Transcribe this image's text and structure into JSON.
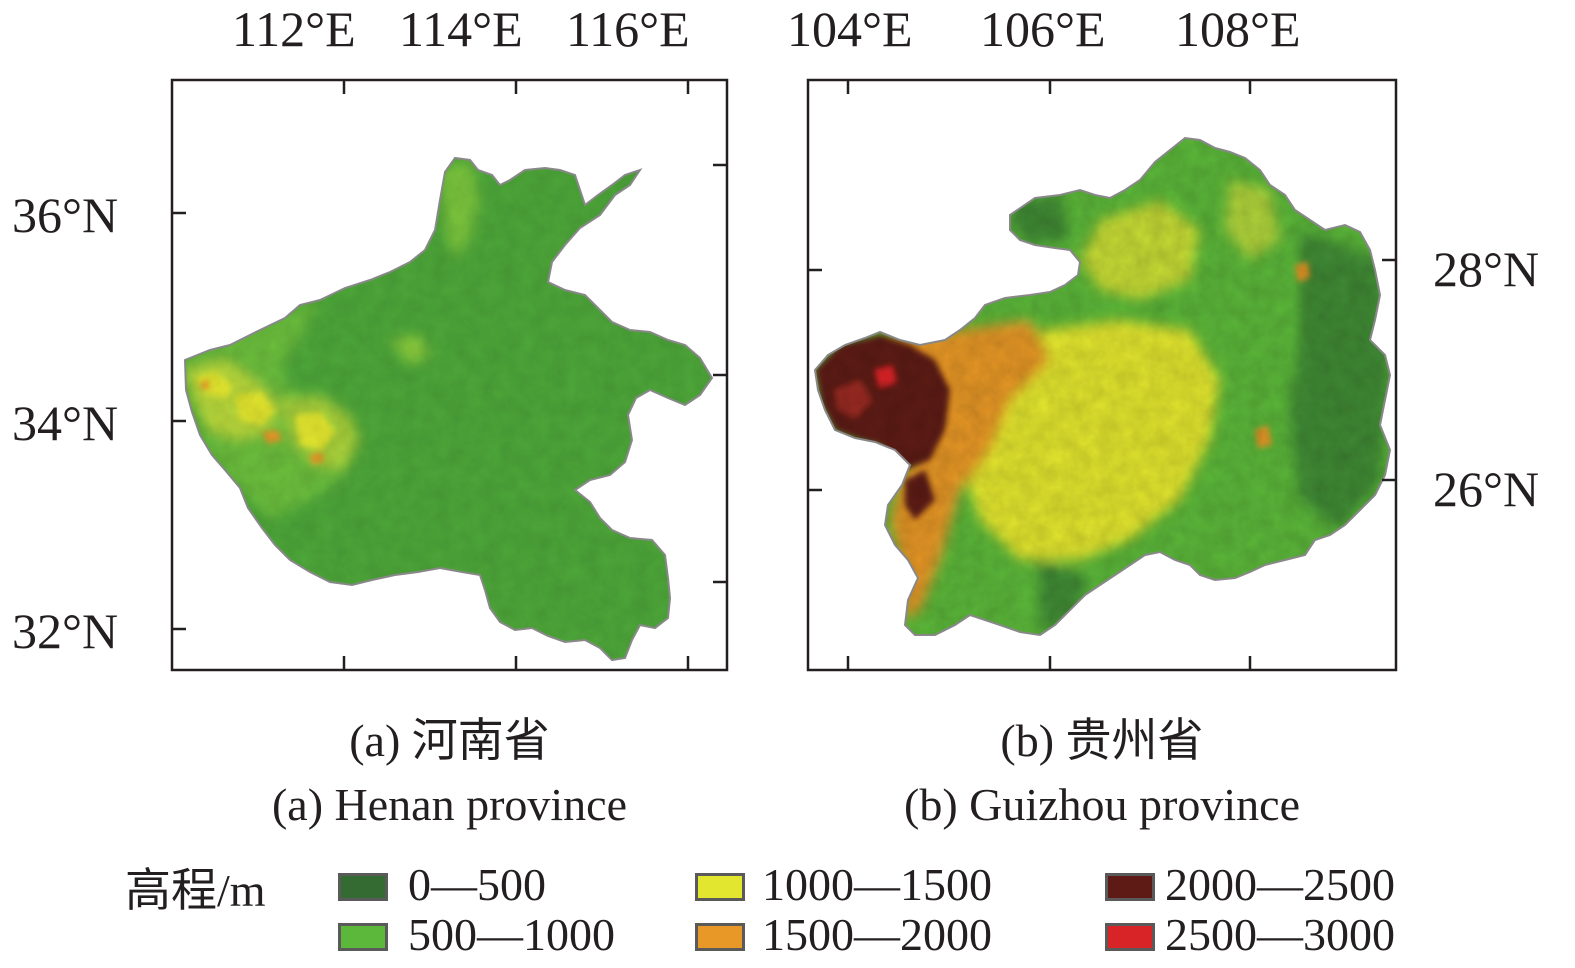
{
  "panel_a": {
    "lon_ticks": [
      "112°E",
      "114°E",
      "116°E"
    ],
    "lat_ticks": [
      "36°N",
      "34°N",
      "32°N"
    ],
    "caption_cn": "(a) 河南省",
    "caption_en": "(a) Henan province"
  },
  "panel_b": {
    "lon_ticks": [
      "104°E",
      "106°E",
      "108°E"
    ],
    "lat_ticks": [
      "28°N",
      "26°N"
    ],
    "caption_cn": "(b) 贵州省",
    "caption_en": "(b) Guizhou province"
  },
  "legend": {
    "title": "高程/m",
    "items": [
      {
        "label": "0—500",
        "color": "#336b32"
      },
      {
        "label": "500—1000",
        "color": "#5cb83a"
      },
      {
        "label": "1000—1500",
        "color": "#e3e62e"
      },
      {
        "label": "1500—2000",
        "color": "#e89826"
      },
      {
        "label": "2000—2500",
        "color": "#5e1a14"
      },
      {
        "label": "2500—3000",
        "color": "#d92427"
      }
    ]
  }
}
